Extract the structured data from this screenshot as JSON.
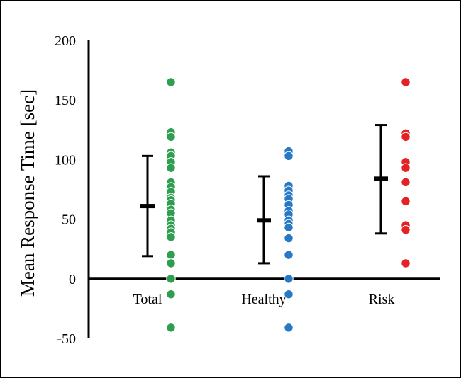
{
  "chart_data": {
    "type": "scatter",
    "title": "",
    "xlabel": "",
    "ylabel": "Mean Response Time [sec]",
    "ylim": [
      -50,
      200
    ],
    "yticks": [
      "200",
      "150",
      "100",
      "50",
      "0",
      "-50"
    ],
    "categories": [
      "Total",
      "Healthy",
      "Risk"
    ],
    "grid": false,
    "legend": "none",
    "summary": [
      {
        "category": "Total",
        "mean": 61,
        "lower": 19,
        "upper": 103
      },
      {
        "category": "Healthy",
        "mean": 49,
        "lower": 13,
        "upper": 86
      },
      {
        "category": "Risk",
        "mean": 84,
        "lower": 38,
        "upper": 129
      }
    ],
    "series": [
      {
        "category": "Total",
        "color": "#2e9e4f",
        "values": [
          165,
          123,
          119,
          106,
          103,
          98,
          93,
          81,
          77,
          73,
          68,
          66,
          63,
          58,
          55,
          49,
          45,
          42,
          39,
          35,
          20,
          13,
          0,
          -13,
          -41
        ]
      },
      {
        "category": "Healthy",
        "color": "#2879c5",
        "values": [
          107,
          103,
          78,
          74,
          70,
          67,
          62,
          57,
          54,
          49,
          46,
          43,
          34,
          20,
          0,
          -13,
          -41
        ]
      },
      {
        "category": "Risk",
        "color": "#e42125",
        "values": [
          165,
          122,
          119,
          98,
          93,
          81,
          65,
          45,
          41,
          13
        ]
      }
    ]
  }
}
